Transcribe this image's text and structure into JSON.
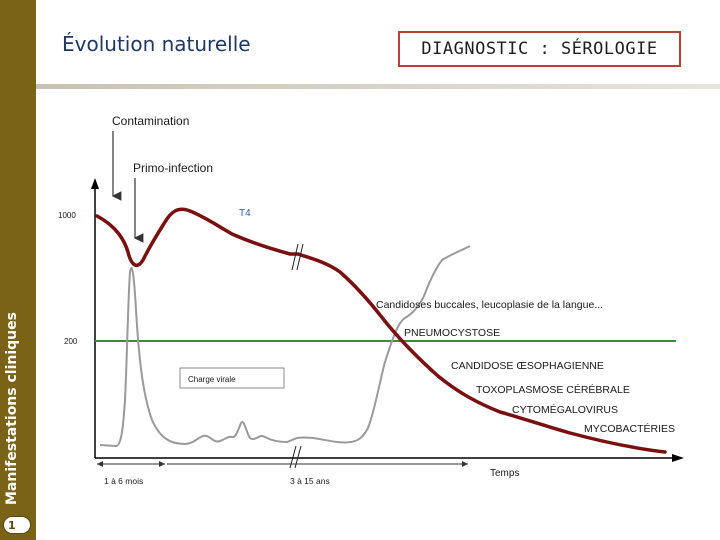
{
  "slide": {
    "title": "Évolution naturelle",
    "subtitle": "DIAGNOSTIC : SÉROLOGIE",
    "sidebar_label": "Manifestations cliniques",
    "page_number": "1"
  },
  "diagram": {
    "event_labels": {
      "contamination": "Contamination",
      "primo_infection": "Primo-infection"
    },
    "y_ticks": [
      "1000",
      "200"
    ],
    "series": {
      "t4": "T4",
      "viral_load": "Charge virale"
    },
    "x_labels": {
      "axis": "Temps",
      "interval_1": "1 à 6 mois",
      "interval_2": "3 à 15 ans"
    },
    "diseases": [
      "Candidoses buccales, leucoplasie de la langue...",
      "PNEUMOCYSTOSE",
      "CANDIDOSE ŒSOPHAGIENNE",
      "TOXOPLASMOSE CÉRÉBRALE",
      "CYTOMÉGALOVIRUS",
      "MYCOBACTÉRIES"
    ],
    "colors": {
      "t4_curve": "#7a0f0f",
      "viral_curve": "#9a9a9a",
      "threshold_line": "#3c8a3c",
      "t4_label": "#2e5fa3",
      "sidebar": "#7a6216",
      "title": "#1f3864",
      "subtitle_border": "#b2433c"
    }
  }
}
